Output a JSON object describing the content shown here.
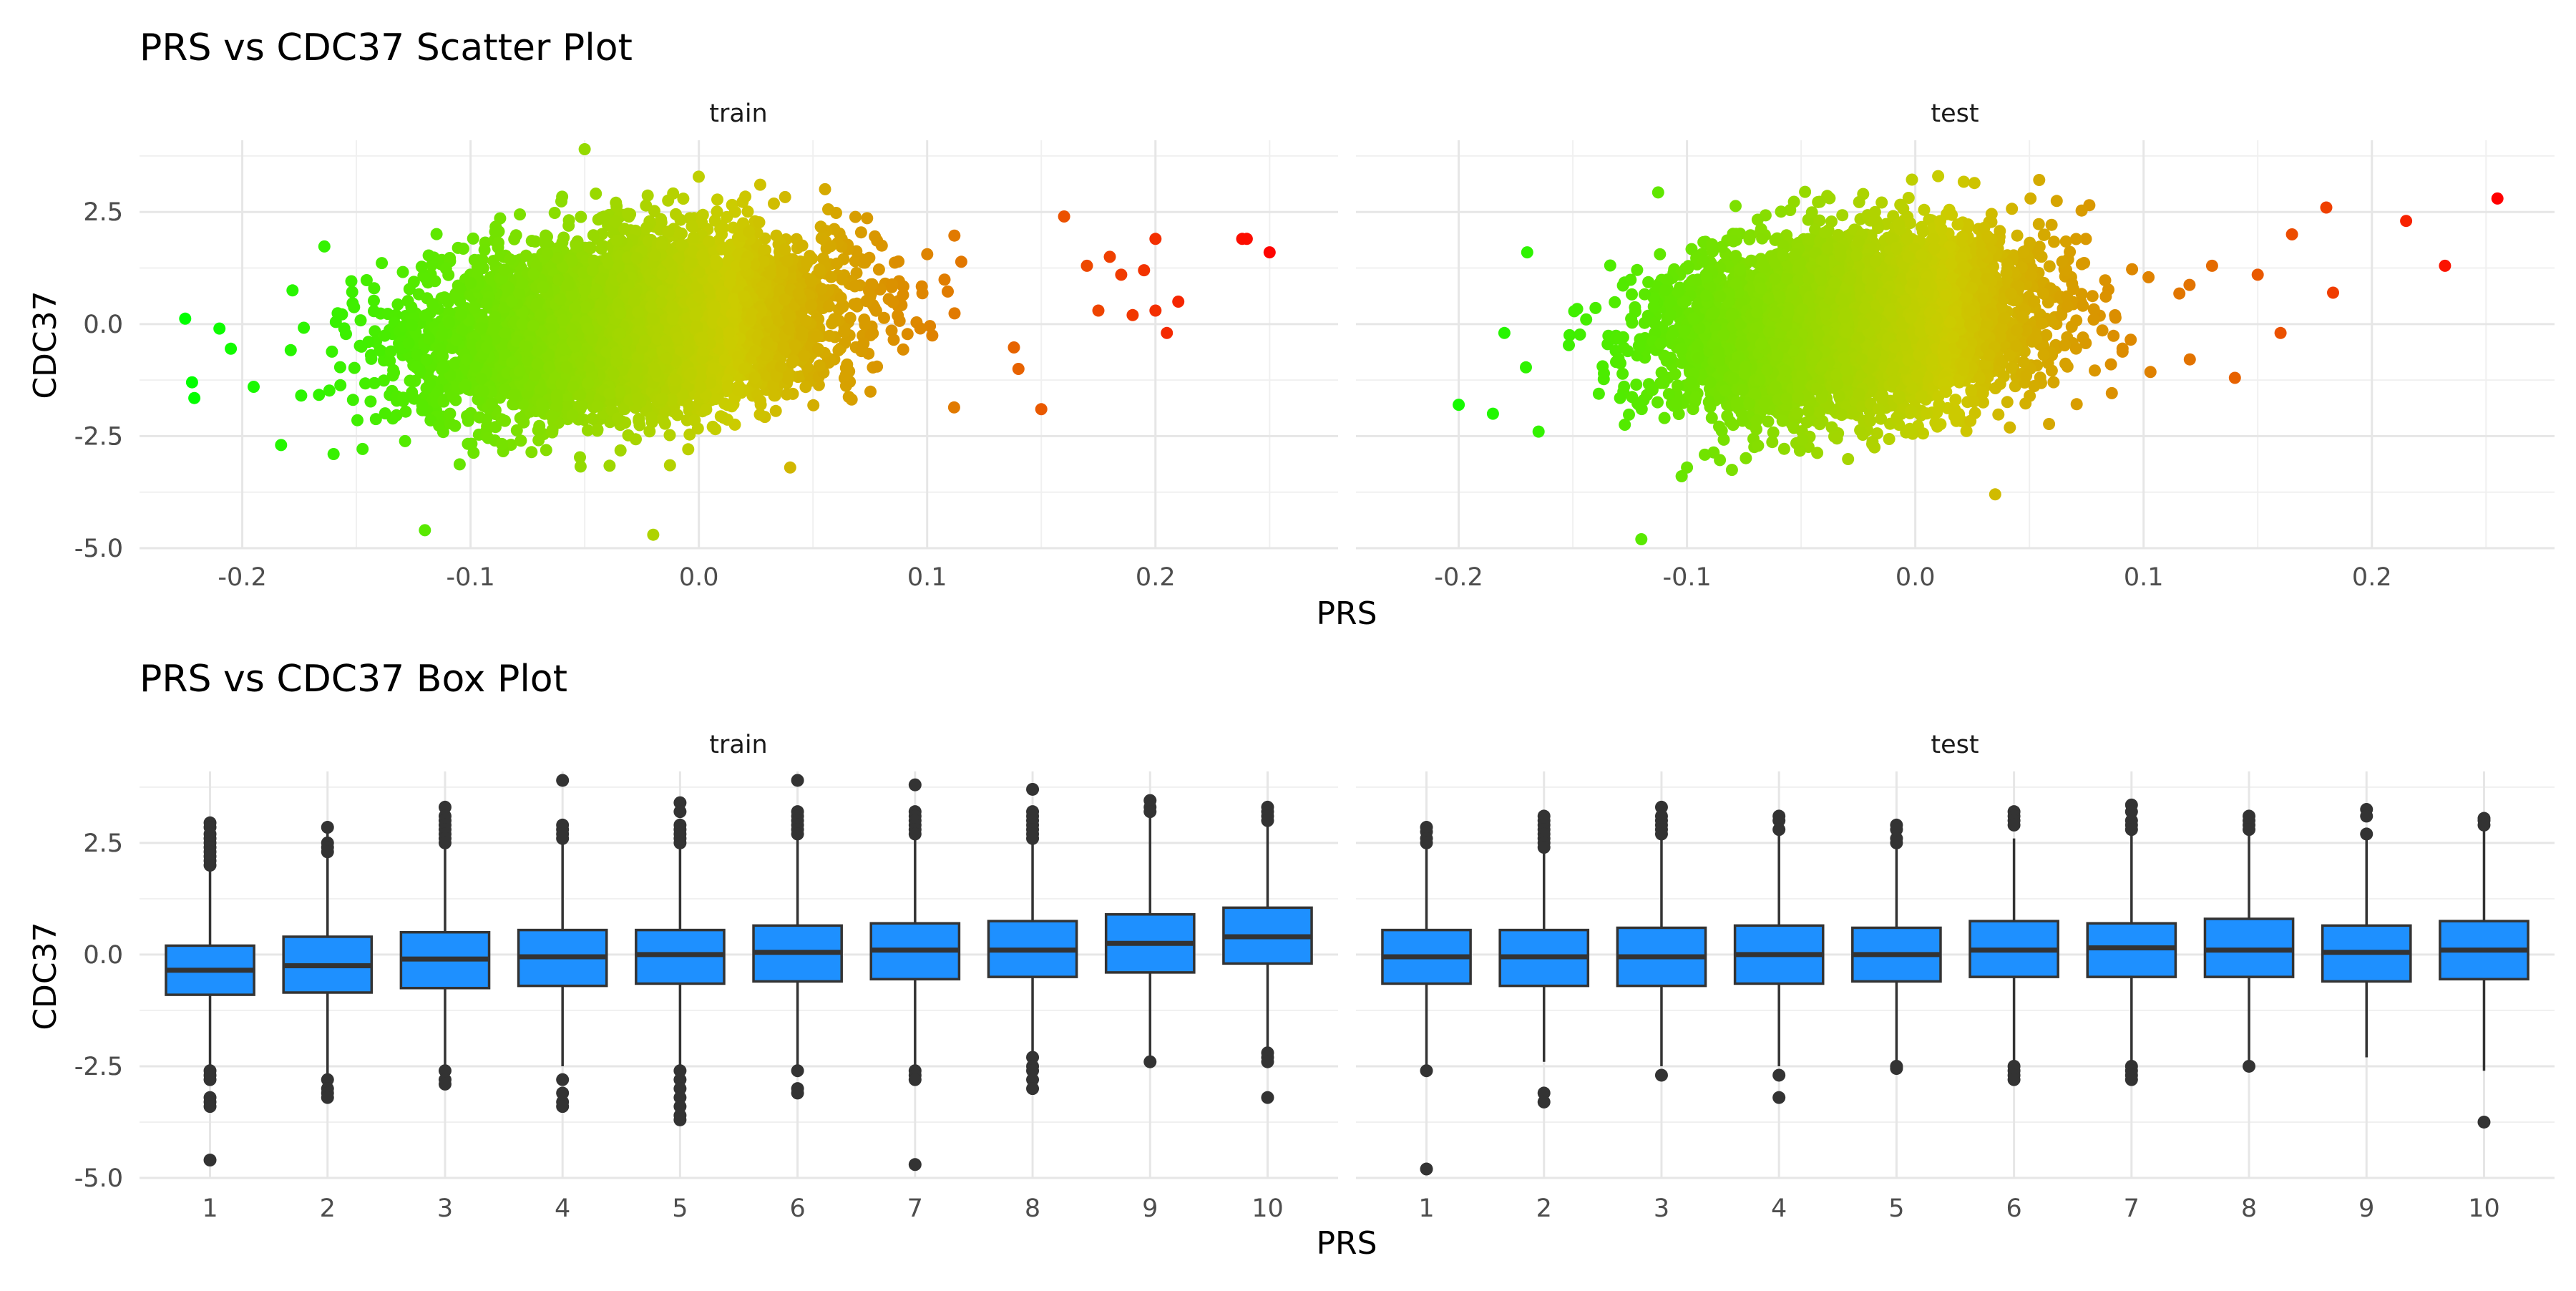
{
  "chart_data": [
    {
      "type": "scatter",
      "title": "PRS vs CDC37 Scatter Plot",
      "xlabel": "PRS",
      "ylabel": "CDC37",
      "xlim": [
        -0.245,
        0.28
      ],
      "ylim": [
        -5.0,
        4.1
      ],
      "x_ticks": [
        -0.2,
        -0.1,
        0.0,
        0.1,
        0.2
      ],
      "x_tick_labels": [
        "-0.2",
        "-0.1",
        "0.0",
        "0.1",
        "0.2"
      ],
      "y_ticks": [
        -5.0,
        -2.5,
        0.0,
        2.5
      ],
      "y_tick_labels": [
        "-5.0",
        "-2.5",
        "0.0",
        "2.5"
      ],
      "grid": true,
      "color_scale": {
        "low": "#00ff00",
        "mid": "#cccc00",
        "high": "#ff0000",
        "maps": "PRS"
      },
      "panels": [
        {
          "name": "train",
          "cloud": {
            "x_center": -0.03,
            "x_sd": 0.045,
            "y_center": 0.0,
            "y_sd": 0.95,
            "slope": 4.5
          },
          "extreme_points": [
            [
              -0.225,
              0.12
            ],
            [
              -0.222,
              -1.3
            ],
            [
              -0.221,
              -1.65
            ],
            [
              -0.21,
              -0.1
            ],
            [
              -0.205,
              -0.55
            ],
            [
              -0.195,
              -1.4
            ],
            [
              -0.183,
              -2.7
            ],
            [
              -0.178,
              0.75
            ],
            [
              -0.16,
              -2.9
            ],
            [
              -0.12,
              -4.6
            ],
            [
              -0.02,
              -4.7
            ],
            [
              -0.05,
              3.9
            ],
            [
              0.04,
              -3.2
            ],
            [
              0.14,
              -1.0
            ],
            [
              0.15,
              -1.9
            ],
            [
              0.16,
              2.4
            ],
            [
              0.17,
              1.3
            ],
            [
              0.175,
              0.3
            ],
            [
              0.18,
              1.5
            ],
            [
              0.185,
              1.1
            ],
            [
              0.19,
              0.2
            ],
            [
              0.195,
              1.2
            ],
            [
              0.2,
              1.9
            ],
            [
              0.2,
              0.3
            ],
            [
              0.205,
              -0.2
            ],
            [
              0.21,
              0.5
            ],
            [
              0.238,
              1.9
            ],
            [
              0.24,
              1.9
            ],
            [
              0.25,
              1.6
            ]
          ]
        },
        {
          "name": "test",
          "cloud": {
            "x_center": -0.03,
            "x_sd": 0.04,
            "y_center": 0.0,
            "y_sd": 0.95,
            "slope": 4.5
          },
          "extreme_points": [
            [
              -0.2,
              -1.8
            ],
            [
              -0.185,
              -2.0
            ],
            [
              -0.18,
              -0.2
            ],
            [
              -0.17,
              1.6
            ],
            [
              -0.165,
              -2.4
            ],
            [
              -0.12,
              -4.8
            ],
            [
              -0.1,
              -3.2
            ],
            [
              0.035,
              -3.8
            ],
            [
              0.01,
              3.3
            ],
            [
              0.13,
              1.3
            ],
            [
              0.14,
              -1.2
            ],
            [
              0.15,
              1.1
            ],
            [
              0.16,
              -0.2
            ],
            [
              0.165,
              2.0
            ],
            [
              0.18,
              2.6
            ],
            [
              0.183,
              0.7
            ],
            [
              0.215,
              2.3
            ],
            [
              0.232,
              1.3
            ],
            [
              0.255,
              2.8
            ]
          ]
        }
      ]
    },
    {
      "type": "box",
      "title": "PRS vs CDC37 Box Plot",
      "xlabel": "PRS",
      "ylabel": "CDC37",
      "categories": [
        "1",
        "2",
        "3",
        "4",
        "5",
        "6",
        "7",
        "8",
        "9",
        "10"
      ],
      "ylim": [
        -5.0,
        4.1
      ],
      "y_ticks": [
        -5.0,
        -2.5,
        0.0,
        2.5
      ],
      "y_tick_labels": [
        "-5.0",
        "-2.5",
        "0.0",
        "2.5"
      ],
      "grid": true,
      "box_fill": "#1e90ff",
      "line_color": "#333333",
      "panels": [
        {
          "name": "train",
          "boxes": [
            {
              "category": "1",
              "q1": -0.9,
              "median": -0.35,
              "q3": 0.2,
              "whisker_low": -2.5,
              "whisker_high": 2.9,
              "outliers_high": [
                2.95,
                2.85,
                2.7,
                2.6,
                2.5,
                2.4,
                2.3,
                2.2,
                2.1,
                2.0
              ],
              "outliers_low": [
                -2.6,
                -2.7,
                -2.8,
                -3.2,
                -3.3,
                -3.4,
                -4.6
              ]
            },
            {
              "category": "2",
              "q1": -0.85,
              "median": -0.25,
              "q3": 0.4,
              "whisker_low": -2.7,
              "whisker_high": 2.8,
              "outliers_high": [
                2.85,
                2.5,
                2.4,
                2.3
              ],
              "outliers_low": [
                -2.8,
                -3.0,
                -3.1,
                -3.2
              ]
            },
            {
              "category": "3",
              "q1": -0.75,
              "median": -0.1,
              "q3": 0.5,
              "whisker_low": -2.5,
              "whisker_high": 2.4,
              "outliers_high": [
                3.3,
                3.1,
                3.0,
                2.9,
                2.8,
                2.7,
                2.6,
                2.5
              ],
              "outliers_low": [
                -2.6,
                -2.8,
                -2.9
              ]
            },
            {
              "category": "4",
              "q1": -0.7,
              "median": -0.05,
              "q3": 0.55,
              "whisker_low": -2.5,
              "whisker_high": 2.5,
              "outliers_high": [
                3.9,
                2.9,
                2.8,
                2.7,
                2.6
              ],
              "outliers_low": [
                -2.8,
                -3.1,
                -3.3,
                -3.4
              ]
            },
            {
              "category": "5",
              "q1": -0.65,
              "median": 0.0,
              "q3": 0.55,
              "whisker_low": -2.5,
              "whisker_high": 2.4,
              "outliers_high": [
                3.4,
                3.2,
                2.9,
                2.8,
                2.7,
                2.6,
                2.5
              ],
              "outliers_low": [
                -2.6,
                -2.8,
                -3.0,
                -3.2,
                -3.4,
                -3.6,
                -3.7
              ]
            },
            {
              "category": "6",
              "q1": -0.6,
              "median": 0.05,
              "q3": 0.65,
              "whisker_low": -2.5,
              "whisker_high": 2.6,
              "outliers_high": [
                3.9,
                3.2,
                3.1,
                3.0,
                2.9,
                2.8,
                2.7
              ],
              "outliers_low": [
                -2.6,
                -3.0,
                -3.1
              ]
            },
            {
              "category": "7",
              "q1": -0.55,
              "median": 0.1,
              "q3": 0.7,
              "whisker_low": -2.5,
              "whisker_high": 2.6,
              "outliers_high": [
                3.8,
                3.2,
                3.1,
                3.0,
                2.9,
                2.8,
                2.7
              ],
              "outliers_low": [
                -2.6,
                -2.7,
                -2.8,
                -4.7
              ]
            },
            {
              "category": "8",
              "q1": -0.5,
              "median": 0.1,
              "q3": 0.75,
              "whisker_low": -2.2,
              "whisker_high": 2.6,
              "outliers_high": [
                3.7,
                3.2,
                3.1,
                3.0,
                2.9,
                2.8,
                2.7,
                2.6
              ],
              "outliers_low": [
                -2.3,
                -2.5,
                -2.6,
                -2.8,
                -3.0
              ]
            },
            {
              "category": "9",
              "q1": -0.4,
              "median": 0.25,
              "q3": 0.9,
              "whisker_low": -2.4,
              "whisker_high": 3.1,
              "outliers_high": [
                3.45,
                3.3,
                3.2
              ],
              "outliers_low": [
                -2.4
              ]
            },
            {
              "category": "10",
              "q1": -0.2,
              "median": 0.4,
              "q3": 1.05,
              "whisker_low": -2.1,
              "whisker_high": 2.9,
              "outliers_high": [
                3.3,
                3.2,
                3.1,
                3.0
              ],
              "outliers_low": [
                -2.2,
                -2.3,
                -2.4,
                -3.2
              ]
            }
          ]
        },
        {
          "name": "test",
          "boxes": [
            {
              "category": "1",
              "q1": -0.65,
              "median": -0.05,
              "q3": 0.55,
              "whisker_low": -2.5,
              "whisker_high": 2.4,
              "outliers_high": [
                2.85,
                2.75,
                2.6,
                2.5
              ],
              "outliers_low": [
                -2.6,
                -4.8
              ]
            },
            {
              "category": "2",
              "q1": -0.7,
              "median": -0.05,
              "q3": 0.55,
              "whisker_low": -2.4,
              "whisker_high": 2.4,
              "outliers_high": [
                3.1,
                3.0,
                2.9,
                2.8,
                2.7,
                2.6,
                2.5,
                2.4
              ],
              "outliers_low": [
                -3.1,
                -3.3
              ]
            },
            {
              "category": "3",
              "q1": -0.7,
              "median": -0.05,
              "q3": 0.6,
              "whisker_low": -2.5,
              "whisker_high": 2.6,
              "outliers_high": [
                3.3,
                3.1,
                3.0,
                2.9,
                2.8,
                2.7
              ],
              "outliers_low": [
                -2.7
              ]
            },
            {
              "category": "4",
              "q1": -0.65,
              "median": 0.0,
              "q3": 0.65,
              "whisker_low": -2.5,
              "whisker_high": 2.7,
              "outliers_high": [
                3.1,
                3.0,
                2.8
              ],
              "outliers_low": [
                -2.7,
                -3.2
              ]
            },
            {
              "category": "5",
              "q1": -0.6,
              "median": 0.0,
              "q3": 0.6,
              "whisker_low": -2.4,
              "whisker_high": 2.4,
              "outliers_high": [
                2.9,
                2.8,
                2.6,
                2.5
              ],
              "outliers_low": [
                -2.5,
                -2.55
              ]
            },
            {
              "category": "6",
              "q1": -0.5,
              "median": 0.1,
              "q3": 0.75,
              "whisker_low": -2.4,
              "whisker_high": 2.6,
              "outliers_high": [
                3.2,
                3.1,
                3.0,
                2.9
              ],
              "outliers_low": [
                -2.5,
                -2.6,
                -2.7,
                -2.8
              ]
            },
            {
              "category": "7",
              "q1": -0.5,
              "median": 0.15,
              "q3": 0.7,
              "whisker_low": -2.4,
              "whisker_high": 2.7,
              "outliers_high": [
                3.35,
                3.2,
                3.0,
                2.9,
                2.8
              ],
              "outliers_low": [
                -2.5,
                -2.6,
                -2.7,
                -2.8
              ]
            },
            {
              "category": "8",
              "q1": -0.5,
              "median": 0.1,
              "q3": 0.8,
              "whisker_low": -2.4,
              "whisker_high": 2.7,
              "outliers_high": [
                3.1,
                3.0,
                2.9,
                2.8
              ],
              "outliers_low": [
                -2.5
              ]
            },
            {
              "category": "9",
              "q1": -0.6,
              "median": 0.05,
              "q3": 0.65,
              "whisker_low": -2.3,
              "whisker_high": 2.7,
              "outliers_high": [
                3.25,
                3.1,
                2.7
              ],
              "outliers_low": []
            },
            {
              "category": "10",
              "q1": -0.55,
              "median": 0.1,
              "q3": 0.75,
              "whisker_low": -2.6,
              "whisker_high": 2.8,
              "outliers_high": [
                3.05,
                3.0,
                2.9
              ],
              "outliers_low": [
                -3.75
              ]
            }
          ]
        }
      ]
    }
  ]
}
